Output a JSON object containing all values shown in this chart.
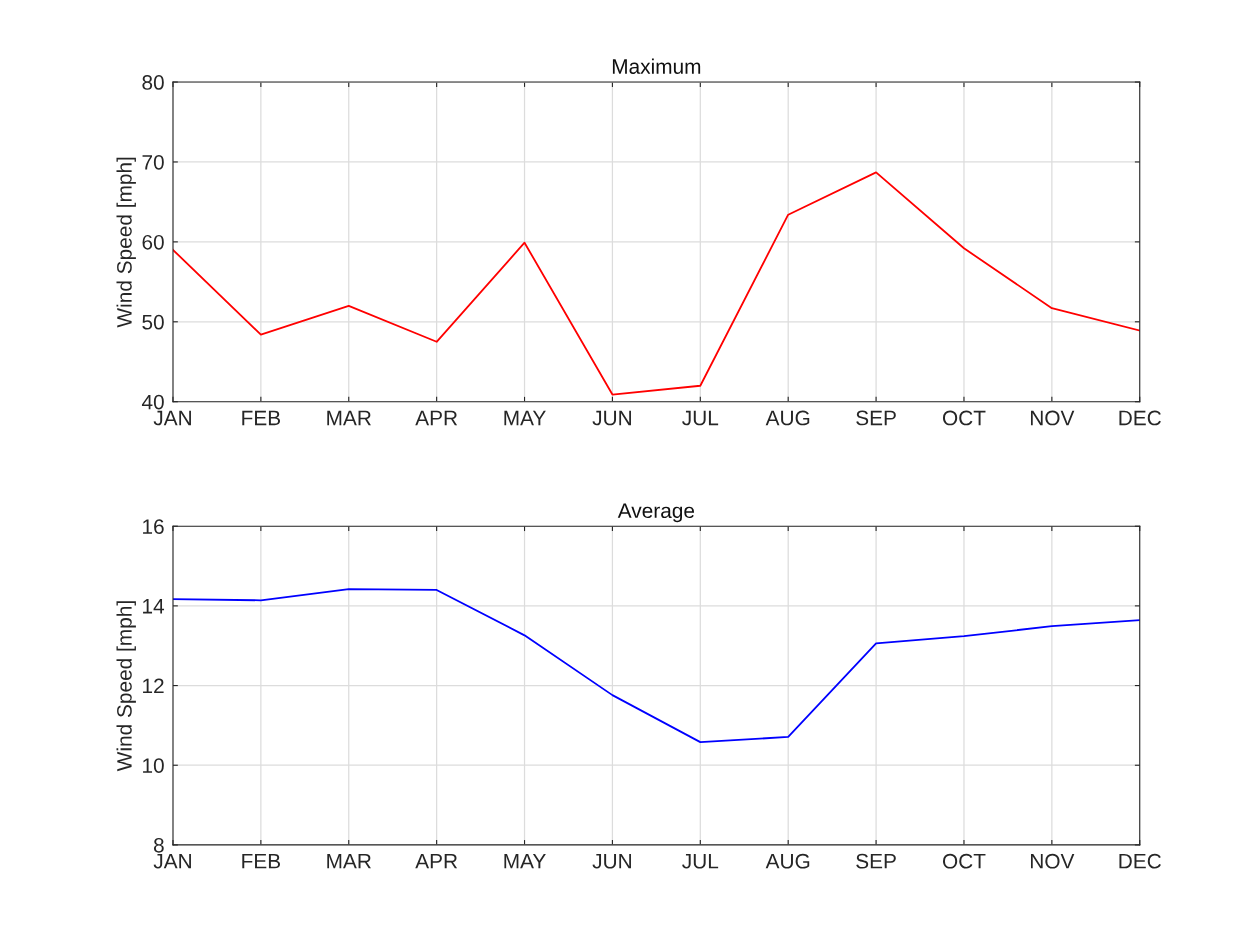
{
  "chart_data": [
    {
      "type": "line",
      "title": "Maximum",
      "ylabel": "Wind Speed [mph]",
      "categories": [
        "JAN",
        "FEB",
        "MAR",
        "APR",
        "MAY",
        "JUN",
        "JUL",
        "AUG",
        "SEP",
        "OCT",
        "NOV",
        "DEC"
      ],
      "series": [
        {
          "color": "#ff0000",
          "values": [
            59.0,
            48.4,
            52.0,
            47.5,
            59.9,
            40.9,
            42.0,
            63.4,
            68.7,
            59.2,
            51.7,
            48.9
          ]
        }
      ],
      "ylim": [
        40,
        80
      ],
      "yticks": [
        40,
        50,
        60,
        70,
        80
      ],
      "grid": true
    },
    {
      "type": "line",
      "title": "Average",
      "ylabel": "Wind Speed [mph]",
      "categories": [
        "JAN",
        "FEB",
        "MAR",
        "APR",
        "MAY",
        "JUN",
        "JUL",
        "AUG",
        "SEP",
        "OCT",
        "NOV",
        "DEC"
      ],
      "series": [
        {
          "color": "#0000ff",
          "values": [
            14.17,
            14.14,
            14.42,
            14.4,
            13.26,
            11.76,
            10.58,
            10.71,
            13.06,
            13.24,
            13.49,
            13.64
          ]
        }
      ],
      "ylim": [
        8,
        16
      ],
      "yticks": [
        8,
        10,
        12,
        14,
        16
      ],
      "grid": true
    }
  ]
}
